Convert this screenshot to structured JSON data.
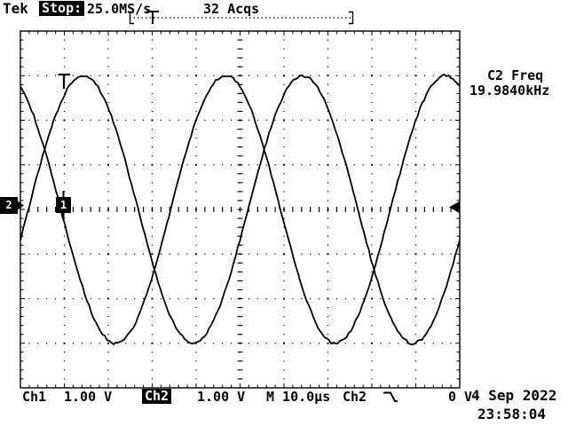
{
  "header": {
    "brand": "Tek",
    "status": "Stop:",
    "sample_rate": "25.0MS/s",
    "acquisitions": "32 Acqs",
    "record_trigger_label": "T"
  },
  "measurement": {
    "label": "C2 Freq",
    "value": "19.9840kHz"
  },
  "markers": {
    "ch2_ground": "2",
    "trigger_point": "1",
    "graticule_trigger": "T"
  },
  "readouts": {
    "ch1_label": "Ch1",
    "ch1_scale": "1.00 V",
    "ch2_label": "Ch2",
    "ch2_scale": "1.00 V",
    "timebase": "M 10.0µs",
    "trigger_source": "Ch2",
    "trigger_level": "0 V",
    "date": "4 Sep 2022",
    "time": "23:58:04"
  },
  "chart_data": {
    "type": "line",
    "title": "Oscilloscope dual-channel sine waves",
    "x_units": "µs",
    "timebase_us_per_div": 10.0,
    "volts_per_div": 1.0,
    "x_range_divs": [
      0,
      10
    ],
    "y_range_divs": [
      -4,
      4
    ],
    "grid": {
      "cols": 10,
      "rows": 8,
      "minor_per_div": 5,
      "style": "dotted"
    },
    "series": [
      {
        "name": "Ch1",
        "amplitude_divs": 3.0,
        "period_divs": 5.0,
        "peak_at_div": 1.43,
        "seed": 7.3
      },
      {
        "name": "Ch2",
        "amplitude_divs": 3.0,
        "period_divs": 5.0,
        "peak_at_div": 4.67,
        "seed": 13.7
      }
    ],
    "frequency_readout": "19.9840kHz",
    "trigger": {
      "source": "Ch2",
      "slope": "falling",
      "level_V": 0,
      "position_div": 0.95
    },
    "legend": "off"
  }
}
